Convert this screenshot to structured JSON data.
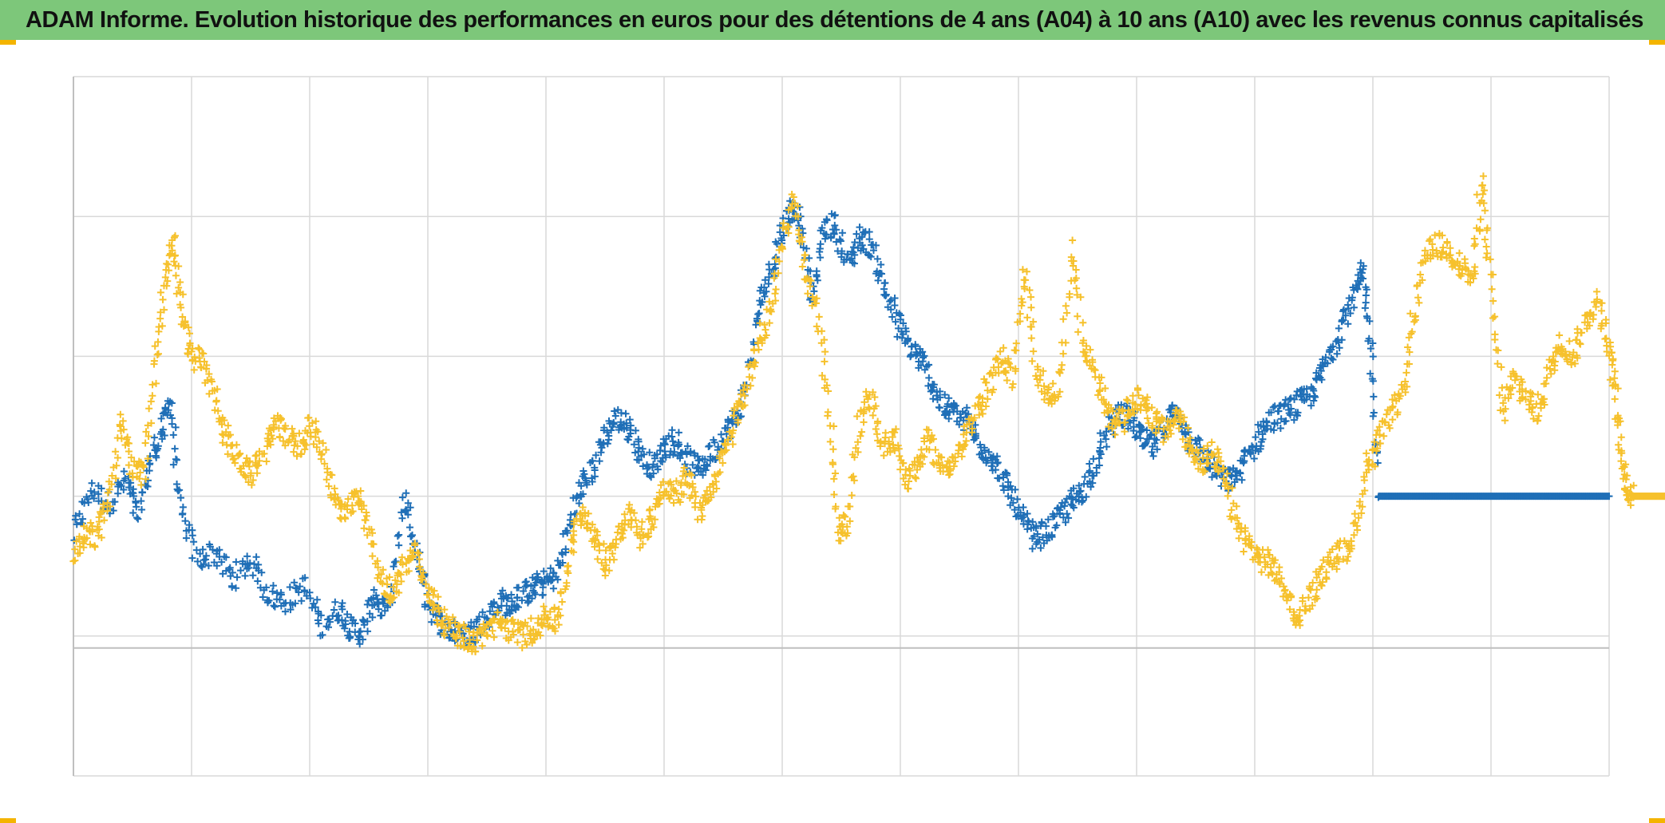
{
  "title": "ADAM Informe. Evolution historique des performances en euros pour des détentions de 4 ans (A04) à 10 ans (A10) avec les revenus connus capitalisés",
  "colors": {
    "header_bg": "#7dc77a",
    "series_blue": "#1f6fb7",
    "series_gold": "#f6c12c",
    "grid": "#d9d9d9",
    "axis": "#bfbfbf",
    "corner": "#f4b400"
  },
  "chart_data": {
    "type": "scatter",
    "title": "ADAM Informe. Evolution historique des performances en euros pour des détentions de 4 ans (A04) à 10 ans (A10) avec les revenus connus capitalisés",
    "xlabel": "",
    "ylabel": "",
    "xlim": [
      0,
      13
    ],
    "ylim": [
      -1,
      4
    ],
    "baseline_y": 0,
    "grid": true,
    "x_gridlines": 13,
    "y_gridlines": [
      -1,
      0,
      1,
      2,
      3,
      4
    ],
    "marker": "plus",
    "legend": "none",
    "series": [
      {
        "color": "#1f6fb7",
        "points": [
          [
            0.0,
            0.72
          ],
          [
            0.15,
            1.05
          ],
          [
            0.3,
            0.95
          ],
          [
            0.45,
            1.12
          ],
          [
            0.55,
            0.85
          ],
          [
            0.65,
            1.25
          ],
          [
            0.75,
            1.45
          ],
          [
            0.82,
            1.7
          ],
          [
            0.9,
            0.9
          ],
          [
            1.05,
            0.55
          ],
          [
            1.2,
            0.6
          ],
          [
            1.35,
            0.4
          ],
          [
            1.5,
            0.55
          ],
          [
            1.65,
            0.3
          ],
          [
            1.8,
            0.25
          ],
          [
            1.95,
            0.35
          ],
          [
            2.1,
            0.08
          ],
          [
            2.25,
            0.2
          ],
          [
            2.35,
            0.05
          ],
          [
            2.45,
            0.02
          ],
          [
            2.55,
            0.3
          ],
          [
            2.65,
            0.15
          ],
          [
            2.8,
            0.98
          ],
          [
            2.9,
            0.6
          ],
          [
            3.0,
            0.25
          ],
          [
            3.1,
            0.1
          ],
          [
            3.2,
            0.03
          ],
          [
            3.3,
            0.0
          ],
          [
            3.4,
            0.05
          ],
          [
            3.5,
            0.12
          ],
          [
            3.6,
            0.25
          ],
          [
            3.7,
            0.22
          ],
          [
            3.8,
            0.3
          ],
          [
            3.9,
            0.35
          ],
          [
            4.0,
            0.38
          ],
          [
            4.1,
            0.45
          ],
          [
            4.2,
            0.8
          ],
          [
            4.3,
            1.05
          ],
          [
            4.4,
            1.2
          ],
          [
            4.5,
            1.45
          ],
          [
            4.6,
            1.55
          ],
          [
            4.7,
            1.5
          ],
          [
            4.8,
            1.3
          ],
          [
            4.9,
            1.2
          ],
          [
            5.0,
            1.35
          ],
          [
            5.1,
            1.4
          ],
          [
            5.2,
            1.25
          ],
          [
            5.3,
            1.2
          ],
          [
            5.4,
            1.3
          ],
          [
            5.5,
            1.45
          ],
          [
            5.6,
            1.55
          ],
          [
            5.7,
            1.8
          ],
          [
            5.8,
            2.35
          ],
          [
            5.9,
            2.6
          ],
          [
            6.0,
            2.9
          ],
          [
            6.08,
            3.05
          ],
          [
            6.15,
            3.0
          ],
          [
            6.25,
            2.4
          ],
          [
            6.35,
            2.9
          ],
          [
            6.45,
            2.95
          ],
          [
            6.55,
            2.65
          ],
          [
            6.65,
            2.85
          ],
          [
            6.75,
            2.8
          ],
          [
            6.85,
            2.55
          ],
          [
            6.95,
            2.3
          ],
          [
            7.05,
            2.1
          ],
          [
            7.15,
            2.0
          ],
          [
            7.25,
            1.85
          ],
          [
            7.35,
            1.65
          ],
          [
            7.45,
            1.6
          ],
          [
            7.55,
            1.55
          ],
          [
            7.65,
            1.4
          ],
          [
            7.75,
            1.3
          ],
          [
            7.85,
            1.15
          ],
          [
            7.95,
            1.0
          ],
          [
            8.05,
            0.8
          ],
          [
            8.15,
            0.7
          ],
          [
            8.25,
            0.75
          ],
          [
            8.35,
            0.85
          ],
          [
            8.45,
            0.95
          ],
          [
            8.55,
            1.05
          ],
          [
            8.65,
            1.25
          ],
          [
            8.75,
            1.45
          ],
          [
            8.85,
            1.6
          ],
          [
            8.95,
            1.55
          ],
          [
            9.05,
            1.4
          ],
          [
            9.15,
            1.35
          ],
          [
            9.25,
            1.55
          ],
          [
            9.35,
            1.6
          ],
          [
            9.45,
            1.4
          ],
          [
            9.55,
            1.3
          ],
          [
            9.65,
            1.2
          ],
          [
            9.75,
            1.1
          ],
          [
            9.85,
            1.15
          ],
          [
            9.95,
            1.3
          ],
          [
            10.05,
            1.45
          ],
          [
            10.15,
            1.55
          ],
          [
            10.25,
            1.6
          ],
          [
            10.35,
            1.65
          ],
          [
            10.45,
            1.7
          ],
          [
            10.55,
            1.85
          ],
          [
            10.65,
            2.05
          ],
          [
            10.75,
            2.25
          ],
          [
            10.85,
            2.45
          ],
          [
            10.92,
            2.6
          ],
          [
            10.98,
            2.1
          ],
          [
            11.05,
            1.0
          ],
          [
            11.2,
            1.0
          ],
          [
            11.35,
            1.0
          ],
          [
            11.5,
            1.0
          ],
          [
            11.65,
            1.0
          ],
          [
            11.8,
            1.0
          ],
          [
            11.95,
            1.0
          ],
          [
            12.1,
            1.0
          ],
          [
            12.25,
            1.0
          ],
          [
            12.4,
            1.0
          ],
          [
            12.55,
            1.0
          ],
          [
            12.7,
            1.0
          ],
          [
            12.85,
            1.0
          ],
          [
            13.0,
            1.0
          ]
        ]
      },
      {
        "color": "#f6c12c",
        "points": [
          [
            0.0,
            0.55
          ],
          [
            0.1,
            0.75
          ],
          [
            0.2,
            0.7
          ],
          [
            0.3,
            0.95
          ],
          [
            0.4,
            1.55
          ],
          [
            0.5,
            1.2
          ],
          [
            0.6,
            1.15
          ],
          [
            0.7,
            1.95
          ],
          [
            0.78,
            2.55
          ],
          [
            0.85,
            2.8
          ],
          [
            0.92,
            2.3
          ],
          [
            1.0,
            2.0
          ],
          [
            1.1,
            1.95
          ],
          [
            1.2,
            1.7
          ],
          [
            1.3,
            1.4
          ],
          [
            1.4,
            1.25
          ],
          [
            1.5,
            1.15
          ],
          [
            1.6,
            1.3
          ],
          [
            1.7,
            1.5
          ],
          [
            1.8,
            1.45
          ],
          [
            1.9,
            1.35
          ],
          [
            2.0,
            1.5
          ],
          [
            2.1,
            1.35
          ],
          [
            2.2,
            1.0
          ],
          [
            2.3,
            0.85
          ],
          [
            2.4,
            1.0
          ],
          [
            2.5,
            0.8
          ],
          [
            2.6,
            0.4
          ],
          [
            2.7,
            0.3
          ],
          [
            2.8,
            0.5
          ],
          [
            2.9,
            0.6
          ],
          [
            3.0,
            0.35
          ],
          [
            3.1,
            0.15
          ],
          [
            3.2,
            0.05
          ],
          [
            3.3,
            0.0
          ],
          [
            3.4,
            -0.05
          ],
          [
            3.5,
            0.05
          ],
          [
            3.6,
            0.1
          ],
          [
            3.7,
            0.05
          ],
          [
            3.8,
            0.0
          ],
          [
            3.9,
            0.05
          ],
          [
            4.0,
            0.15
          ],
          [
            4.1,
            0.1
          ],
          [
            4.2,
            0.6
          ],
          [
            4.3,
            0.9
          ],
          [
            4.4,
            0.75
          ],
          [
            4.5,
            0.5
          ],
          [
            4.6,
            0.7
          ],
          [
            4.7,
            0.9
          ],
          [
            4.8,
            0.7
          ],
          [
            4.9,
            0.85
          ],
          [
            5.0,
            1.05
          ],
          [
            5.1,
            1.0
          ],
          [
            5.2,
            1.15
          ],
          [
            5.3,
            0.9
          ],
          [
            5.4,
            1.0
          ],
          [
            5.5,
            1.3
          ],
          [
            5.6,
            1.55
          ],
          [
            5.7,
            1.8
          ],
          [
            5.8,
            2.1
          ],
          [
            5.9,
            2.35
          ],
          [
            6.0,
            2.8
          ],
          [
            6.1,
            3.1
          ],
          [
            6.2,
            2.6
          ],
          [
            6.3,
            2.3
          ],
          [
            6.4,
            1.6
          ],
          [
            6.48,
            0.75
          ],
          [
            6.55,
            0.8
          ],
          [
            6.65,
            1.5
          ],
          [
            6.75,
            1.7
          ],
          [
            6.85,
            1.35
          ],
          [
            6.95,
            1.45
          ],
          [
            7.05,
            1.1
          ],
          [
            7.15,
            1.25
          ],
          [
            7.25,
            1.4
          ],
          [
            7.35,
            1.2
          ],
          [
            7.45,
            1.25
          ],
          [
            7.55,
            1.4
          ],
          [
            7.65,
            1.6
          ],
          [
            7.75,
            1.8
          ],
          [
            7.85,
            2.0
          ],
          [
            7.95,
            1.85
          ],
          [
            8.05,
            2.6
          ],
          [
            8.15,
            1.95
          ],
          [
            8.25,
            1.7
          ],
          [
            8.35,
            1.8
          ],
          [
            8.45,
            2.8
          ],
          [
            8.55,
            2.05
          ],
          [
            8.65,
            1.9
          ],
          [
            8.75,
            1.6
          ],
          [
            8.85,
            1.5
          ],
          [
            8.95,
            1.65
          ],
          [
            9.05,
            1.7
          ],
          [
            9.15,
            1.55
          ],
          [
            9.25,
            1.45
          ],
          [
            9.35,
            1.6
          ],
          [
            9.45,
            1.35
          ],
          [
            9.55,
            1.25
          ],
          [
            9.65,
            1.3
          ],
          [
            9.75,
            1.1
          ],
          [
            9.85,
            0.8
          ],
          [
            9.95,
            0.65
          ],
          [
            10.05,
            0.55
          ],
          [
            10.15,
            0.5
          ],
          [
            10.25,
            0.35
          ],
          [
            10.35,
            0.1
          ],
          [
            10.45,
            0.25
          ],
          [
            10.55,
            0.4
          ],
          [
            10.65,
            0.55
          ],
          [
            10.75,
            0.6
          ],
          [
            10.85,
            0.75
          ],
          [
            10.95,
            1.2
          ],
          [
            11.05,
            1.4
          ],
          [
            11.15,
            1.55
          ],
          [
            11.25,
            1.75
          ],
          [
            11.35,
            2.3
          ],
          [
            11.45,
            2.7
          ],
          [
            11.55,
            2.8
          ],
          [
            11.65,
            2.75
          ],
          [
            11.75,
            2.65
          ],
          [
            11.85,
            2.55
          ],
          [
            11.92,
            3.3
          ],
          [
            12.0,
            2.5
          ],
          [
            12.1,
            1.6
          ],
          [
            12.2,
            1.85
          ],
          [
            12.3,
            1.7
          ],
          [
            12.4,
            1.6
          ],
          [
            12.5,
            1.9
          ],
          [
            12.6,
            2.1
          ],
          [
            12.7,
            2.0
          ],
          [
            12.8,
            2.25
          ],
          [
            12.9,
            2.4
          ],
          [
            13.0,
            2.1
          ],
          [
            13.05,
            1.75
          ],
          [
            13.1,
            1.3
          ],
          [
            13.15,
            1.05
          ],
          [
            13.2,
            1.0
          ],
          [
            13.3,
            1.0
          ],
          [
            13.4,
            1.0
          ],
          [
            13.5,
            1.0
          ]
        ]
      }
    ]
  }
}
